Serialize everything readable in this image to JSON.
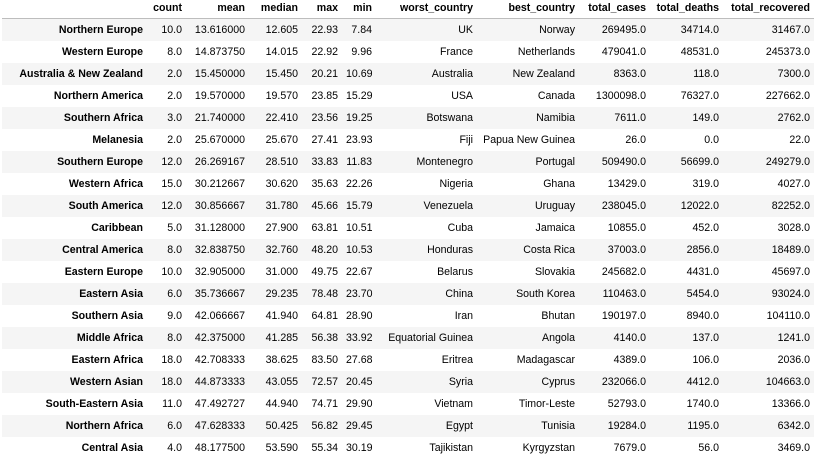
{
  "table": {
    "index_header": "",
    "columns": [
      "count",
      "mean",
      "median",
      "max",
      "min",
      "worst_country",
      "best_country",
      "total_cases",
      "total_deaths",
      "total_recovered"
    ],
    "rows": [
      {
        "region": "Northern Europe",
        "cells": [
          "10.0",
          "13.616000",
          "12.605",
          "22.93",
          "7.84",
          "UK",
          "Norway",
          "269495.0",
          "34714.0",
          "31467.0"
        ]
      },
      {
        "region": "Western Europe",
        "cells": [
          "8.0",
          "14.873750",
          "14.015",
          "22.92",
          "9.96",
          "France",
          "Netherlands",
          "479041.0",
          "48531.0",
          "245373.0"
        ]
      },
      {
        "region": "Australia & New Zealand",
        "cells": [
          "2.0",
          "15.450000",
          "15.450",
          "20.21",
          "10.69",
          "Australia",
          "New Zealand",
          "8363.0",
          "118.0",
          "7300.0"
        ]
      },
      {
        "region": "Northern America",
        "cells": [
          "2.0",
          "19.570000",
          "19.570",
          "23.85",
          "15.29",
          "USA",
          "Canada",
          "1300098.0",
          "76327.0",
          "227662.0"
        ]
      },
      {
        "region": "Southern Africa",
        "cells": [
          "3.0",
          "21.740000",
          "22.410",
          "23.56",
          "19.25",
          "Botswana",
          "Namibia",
          "7611.0",
          "149.0",
          "2762.0"
        ]
      },
      {
        "region": "Melanesia",
        "cells": [
          "2.0",
          "25.670000",
          "25.670",
          "27.41",
          "23.93",
          "Fiji",
          "Papua New Guinea",
          "26.0",
          "0.0",
          "22.0"
        ]
      },
      {
        "region": "Southern Europe",
        "cells": [
          "12.0",
          "26.269167",
          "28.510",
          "33.83",
          "11.83",
          "Montenegro",
          "Portugal",
          "509490.0",
          "56699.0",
          "249279.0"
        ]
      },
      {
        "region": "Western Africa",
        "cells": [
          "15.0",
          "30.212667",
          "30.620",
          "35.63",
          "22.26",
          "Nigeria",
          "Ghana",
          "13429.0",
          "319.0",
          "4027.0"
        ]
      },
      {
        "region": "South America",
        "cells": [
          "12.0",
          "30.856667",
          "31.780",
          "45.66",
          "15.79",
          "Venezuela",
          "Uruguay",
          "238045.0",
          "12022.0",
          "82252.0"
        ]
      },
      {
        "region": "Caribbean",
        "cells": [
          "5.0",
          "31.128000",
          "27.900",
          "63.81",
          "10.51",
          "Cuba",
          "Jamaica",
          "10855.0",
          "452.0",
          "3028.0"
        ]
      },
      {
        "region": "Central America",
        "cells": [
          "8.0",
          "32.838750",
          "32.760",
          "48.20",
          "10.53",
          "Honduras",
          "Costa Rica",
          "37003.0",
          "2856.0",
          "18489.0"
        ]
      },
      {
        "region": "Eastern Europe",
        "cells": [
          "10.0",
          "32.905000",
          "31.000",
          "49.75",
          "22.67",
          "Belarus",
          "Slovakia",
          "245682.0",
          "4431.0",
          "45697.0"
        ]
      },
      {
        "region": "Eastern Asia",
        "cells": [
          "6.0",
          "35.736667",
          "29.235",
          "78.48",
          "23.70",
          "China",
          "South Korea",
          "110463.0",
          "5454.0",
          "93024.0"
        ]
      },
      {
        "region": "Southern Asia",
        "cells": [
          "9.0",
          "42.066667",
          "41.940",
          "64.81",
          "28.90",
          "Iran",
          "Bhutan",
          "190197.0",
          "8940.0",
          "104110.0"
        ]
      },
      {
        "region": "Middle Africa",
        "cells": [
          "8.0",
          "42.375000",
          "41.285",
          "56.38",
          "33.92",
          "Equatorial Guinea",
          "Angola",
          "4140.0",
          "137.0",
          "1241.0"
        ]
      },
      {
        "region": "Eastern Africa",
        "cells": [
          "18.0",
          "42.708333",
          "38.625",
          "83.50",
          "27.68",
          "Eritrea",
          "Madagascar",
          "4389.0",
          "106.0",
          "2036.0"
        ]
      },
      {
        "region": "Western Asian",
        "cells": [
          "18.0",
          "44.873333",
          "43.055",
          "72.57",
          "20.45",
          "Syria",
          "Cyprus",
          "232066.0",
          "4412.0",
          "104663.0"
        ]
      },
      {
        "region": "South-Eastern Asia",
        "cells": [
          "11.0",
          "47.492727",
          "44.940",
          "74.71",
          "29.90",
          "Vietnam",
          "Timor-Leste",
          "52793.0",
          "1740.0",
          "13366.0"
        ]
      },
      {
        "region": "Northern Africa",
        "cells": [
          "6.0",
          "47.628333",
          "50.425",
          "56.82",
          "29.45",
          "Egypt",
          "Tunisia",
          "19284.0",
          "1195.0",
          "6342.0"
        ]
      },
      {
        "region": "Central Asia",
        "cells": [
          "4.0",
          "48.177500",
          "53.590",
          "55.34",
          "30.19",
          "Tajikistan",
          "Kyrgyzstan",
          "7679.0",
          "56.0",
          "3469.0"
        ]
      }
    ]
  }
}
